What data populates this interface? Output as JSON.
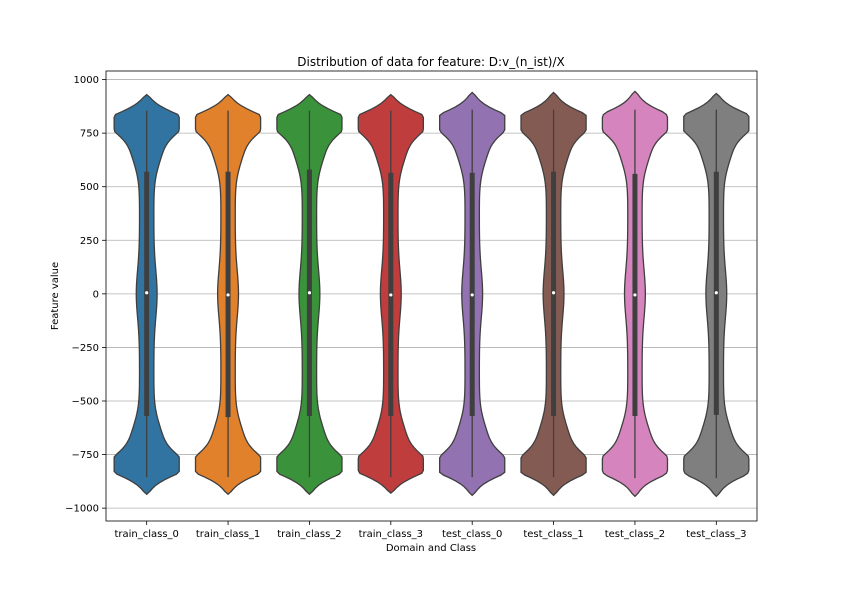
{
  "chart_data": {
    "type": "violin",
    "title": "Distribution of data for feature: D:v_(n_ist)/X",
    "xlabel": "Domain and Class",
    "ylabel": "Feature value",
    "ylim": [
      -1060,
      1040
    ],
    "yticks": [
      1000,
      750,
      500,
      250,
      0,
      -250,
      -500,
      -750,
      -1000
    ],
    "ytick_labels": [
      "1000",
      "750",
      "500",
      "250",
      "0",
      "−250",
      "−500",
      "−750",
      "−1000"
    ],
    "grid": "horizontal",
    "categories": [
      "train_class_0",
      "train_class_1",
      "train_class_2",
      "train_class_3",
      "test_class_0",
      "test_class_1",
      "test_class_2",
      "test_class_3"
    ],
    "colors": [
      "#3274a1",
      "#e1812c",
      "#3a923a",
      "#c03d3e",
      "#9372b2",
      "#845b53",
      "#d684bd",
      "#7f7f7f"
    ],
    "series": [
      {
        "category": "train_class_0",
        "min": -855,
        "q1": -570,
        "median": 5,
        "q3": 570,
        "max": 855,
        "lower_extent": -935,
        "upper_extent": 930
      },
      {
        "category": "train_class_1",
        "min": -855,
        "q1": -575,
        "median": -5,
        "q3": 570,
        "max": 855,
        "lower_extent": -935,
        "upper_extent": 930
      },
      {
        "category": "train_class_2",
        "min": -855,
        "q1": -570,
        "median": 5,
        "q3": 580,
        "max": 855,
        "lower_extent": -935,
        "upper_extent": 930
      },
      {
        "category": "train_class_3",
        "min": -855,
        "q1": -570,
        "median": -5,
        "q3": 565,
        "max": 855,
        "lower_extent": -930,
        "upper_extent": 930
      },
      {
        "category": "test_class_0",
        "min": -855,
        "q1": -570,
        "median": -5,
        "q3": 565,
        "max": 860,
        "lower_extent": -940,
        "upper_extent": 940
      },
      {
        "category": "test_class_1",
        "min": -855,
        "q1": -570,
        "median": 5,
        "q3": 570,
        "max": 860,
        "lower_extent": -940,
        "upper_extent": 940
      },
      {
        "category": "test_class_2",
        "min": -860,
        "q1": -570,
        "median": -5,
        "q3": 560,
        "max": 860,
        "lower_extent": -945,
        "upper_extent": 945
      },
      {
        "category": "test_class_3",
        "min": -860,
        "q1": -565,
        "median": 5,
        "q3": 570,
        "max": 860,
        "lower_extent": -945,
        "upper_extent": 935
      }
    ]
  }
}
